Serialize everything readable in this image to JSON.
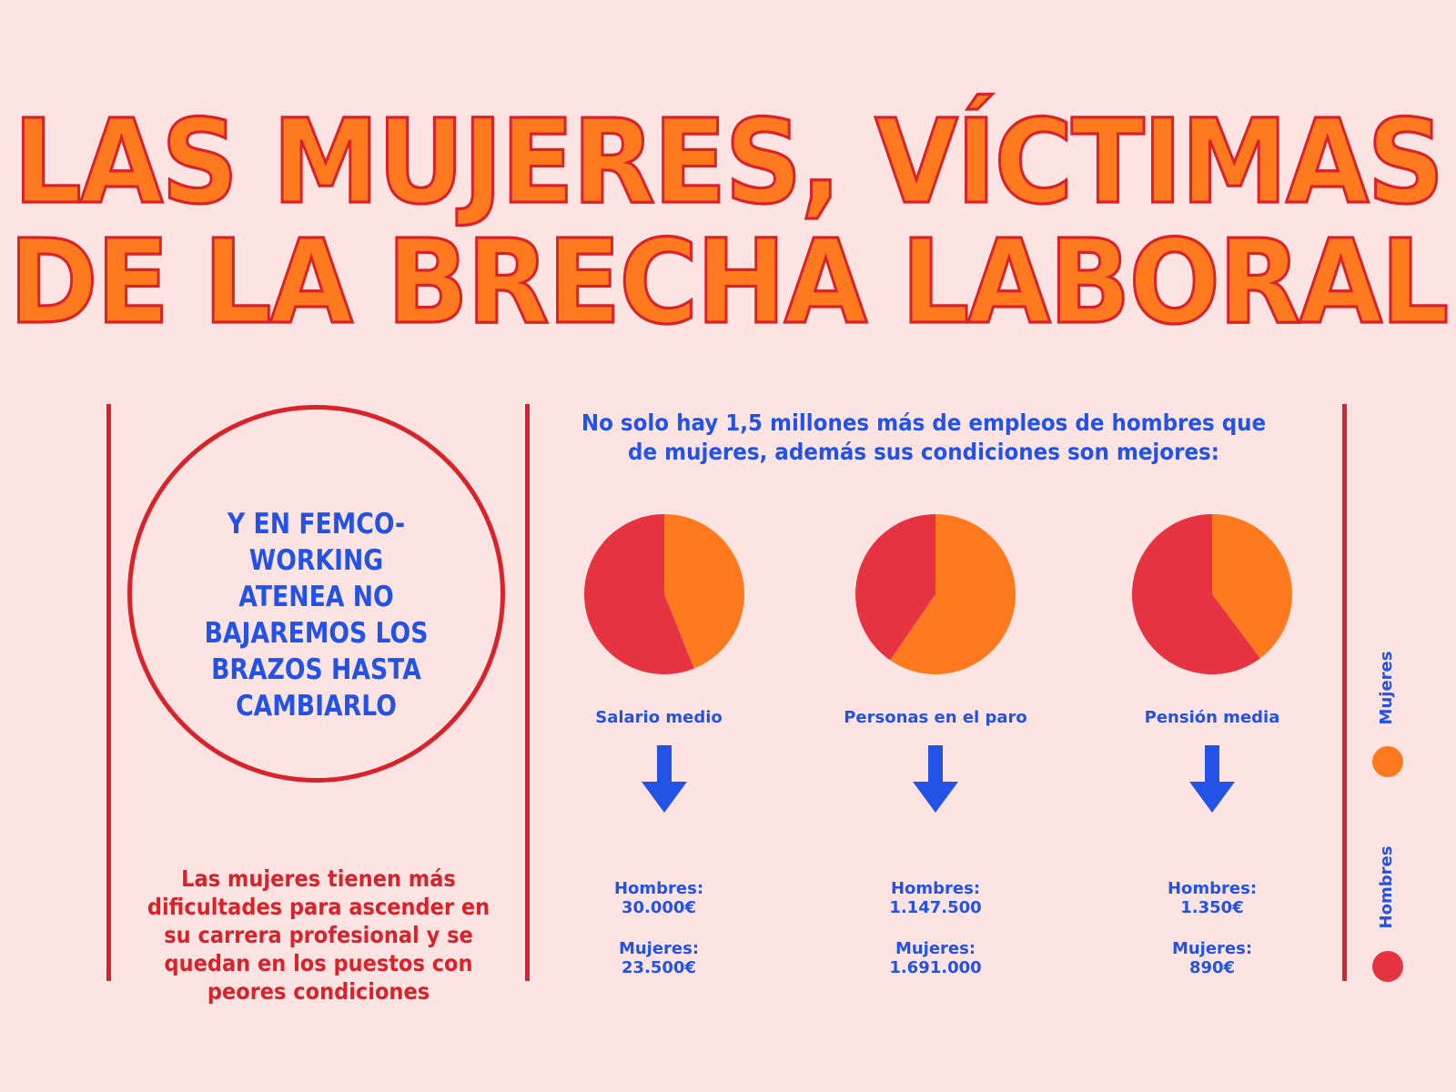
{
  "title_lines": [
    "LAS MUJERES, VÍCTIMAS",
    "DE LA BRECHA LABORAL"
  ],
  "circle_text": "Y EN FEMCO- WORKING ATENEA NO BAJAREMOS LOS BRAZOS HASTA CAMBIARLO",
  "left_note": "Las mujeres tienen más dificultades para ascender en su carrera profesional y se quedan en los puestos con peores condiciones",
  "intro": "No solo hay 1,5 millones más de empleos de hombres que de mujeres, además sus condiciones son mejores:",
  "colors": {
    "hombres": "#e63342",
    "mujeres": "#ff7a1f",
    "accent_red": "#d8232a",
    "blue": "#2352e6",
    "background": "#fde4e2"
  },
  "chart_data": {
    "type": "pie",
    "legend": {
      "placement": "right",
      "entries": [
        "Mujeres",
        "Hombres"
      ]
    },
    "charts": [
      {
        "label": "Salario medio",
        "slices": [
          {
            "name": "Hombres",
            "value": 30000
          },
          {
            "name": "Mujeres",
            "value": 23500
          }
        ],
        "hombres_text": "Hombres:",
        "hombres_value": "30.000€",
        "mujeres_text": "Mujeres:",
        "mujeres_value": "23.500€"
      },
      {
        "label": "Personas en el paro",
        "slices": [
          {
            "name": "Hombres",
            "value": 1147500
          },
          {
            "name": "Mujeres",
            "value": 1691000
          }
        ],
        "hombres_text": "Hombres:",
        "hombres_value": "1.147.500",
        "mujeres_text": "Mujeres:",
        "mujeres_value": "1.691.000"
      },
      {
        "label": "Pensión media",
        "slices": [
          {
            "name": "Hombres",
            "value": 1350
          },
          {
            "name": "Mujeres",
            "value": 890
          }
        ],
        "hombres_text": "Hombres:",
        "hombres_value": "1.350€",
        "mujeres_text": "Mujeres:",
        "mujeres_value": "890€"
      }
    ]
  }
}
